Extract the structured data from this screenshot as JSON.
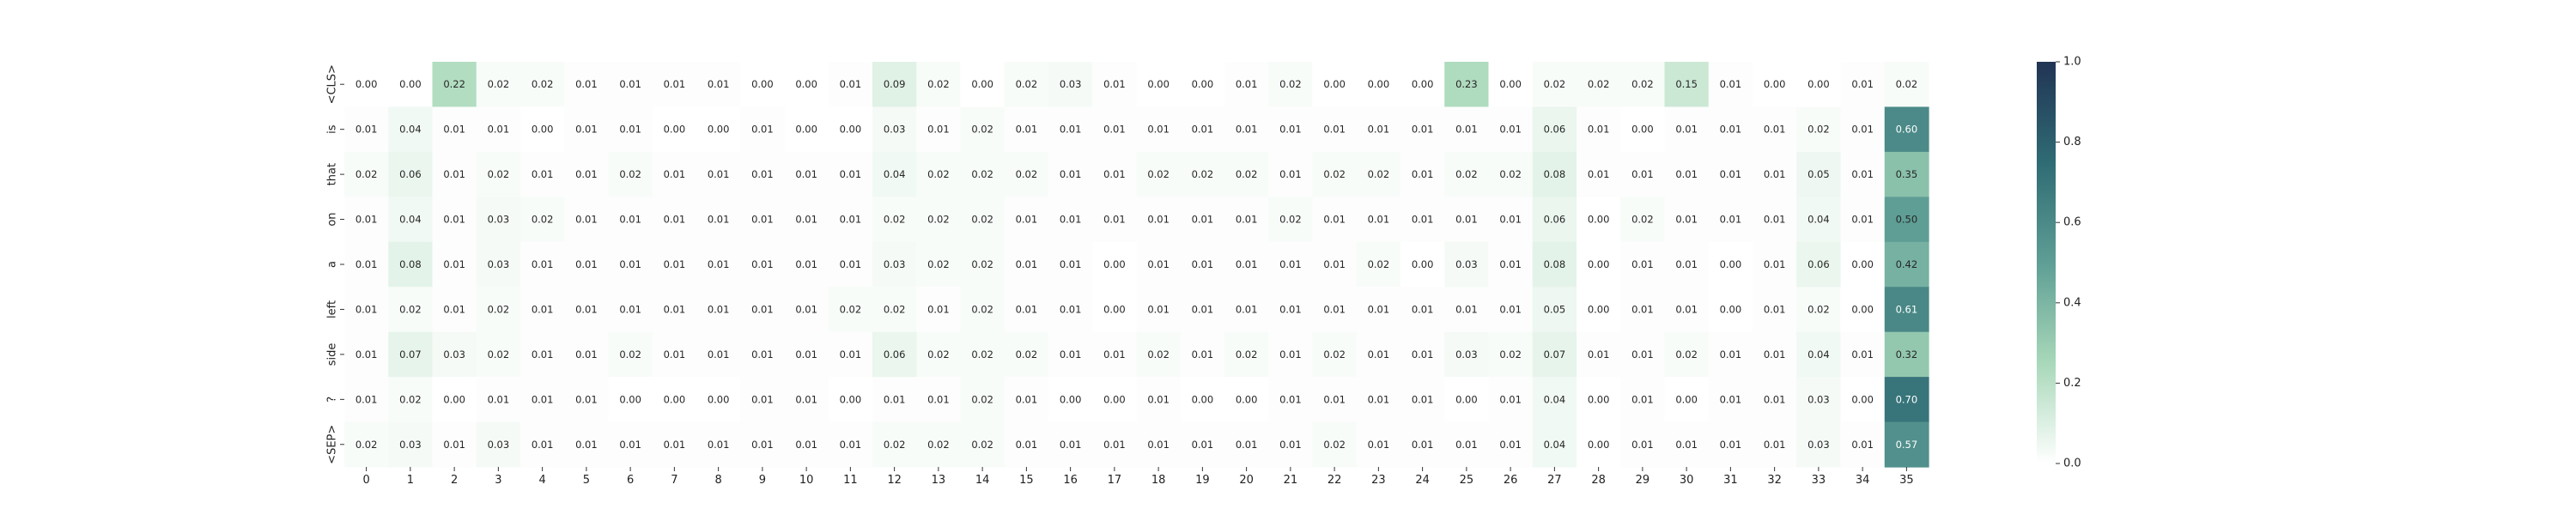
{
  "chart_data": {
    "type": "heatmap",
    "title": "",
    "xlabel": "",
    "ylabel": "",
    "x_labels": [
      "0",
      "1",
      "2",
      "3",
      "4",
      "5",
      "6",
      "7",
      "8",
      "9",
      "10",
      "11",
      "12",
      "13",
      "14",
      "15",
      "16",
      "17",
      "18",
      "19",
      "20",
      "21",
      "22",
      "23",
      "24",
      "25",
      "26",
      "27",
      "28",
      "29",
      "30",
      "31",
      "32",
      "33",
      "34",
      "35"
    ],
    "y_labels": [
      "<CLS>",
      "is",
      "that",
      "on",
      "a",
      "left",
      "side",
      "?",
      "<SEP>"
    ],
    "values": [
      [
        0.0,
        0.0,
        0.22,
        0.02,
        0.02,
        0.01,
        0.01,
        0.01,
        0.01,
        0.0,
        0.0,
        0.01,
        0.09,
        0.02,
        0.0,
        0.02,
        0.03,
        0.01,
        0.0,
        0.0,
        0.01,
        0.02,
        0.0,
        0.0,
        0.0,
        0.23,
        0.0,
        0.02,
        0.02,
        0.02,
        0.15,
        0.01,
        0.0,
        0.0,
        0.01,
        0.02
      ],
      [
        0.01,
        0.04,
        0.01,
        0.01,
        0.0,
        0.01,
        0.01,
        0.0,
        0.0,
        0.01,
        0.0,
        0.0,
        0.03,
        0.01,
        0.02,
        0.01,
        0.01,
        0.01,
        0.01,
        0.01,
        0.01,
        0.01,
        0.01,
        0.01,
        0.01,
        0.01,
        0.01,
        0.06,
        0.01,
        0.0,
        0.01,
        0.01,
        0.01,
        0.02,
        0.01,
        0.6
      ],
      [
        0.02,
        0.06,
        0.01,
        0.02,
        0.01,
        0.01,
        0.02,
        0.01,
        0.01,
        0.01,
        0.01,
        0.01,
        0.04,
        0.02,
        0.02,
        0.02,
        0.01,
        0.01,
        0.02,
        0.02,
        0.02,
        0.01,
        0.02,
        0.02,
        0.01,
        0.02,
        0.02,
        0.08,
        0.01,
        0.01,
        0.01,
        0.01,
        0.01,
        0.05,
        0.01,
        0.35
      ],
      [
        0.01,
        0.04,
        0.01,
        0.03,
        0.02,
        0.01,
        0.01,
        0.01,
        0.01,
        0.01,
        0.01,
        0.01,
        0.02,
        0.02,
        0.02,
        0.01,
        0.01,
        0.01,
        0.01,
        0.01,
        0.01,
        0.02,
        0.01,
        0.01,
        0.01,
        0.01,
        0.01,
        0.06,
        0.0,
        0.02,
        0.01,
        0.01,
        0.01,
        0.04,
        0.01,
        0.5
      ],
      [
        0.01,
        0.08,
        0.01,
        0.03,
        0.01,
        0.01,
        0.01,
        0.01,
        0.01,
        0.01,
        0.01,
        0.01,
        0.03,
        0.02,
        0.02,
        0.01,
        0.01,
        0.0,
        0.01,
        0.01,
        0.01,
        0.01,
        0.01,
        0.02,
        0.0,
        0.03,
        0.01,
        0.08,
        0.0,
        0.01,
        0.01,
        0.0,
        0.01,
        0.06,
        0.0,
        0.42
      ],
      [
        0.01,
        0.02,
        0.01,
        0.02,
        0.01,
        0.01,
        0.01,
        0.01,
        0.01,
        0.01,
        0.01,
        0.02,
        0.02,
        0.01,
        0.02,
        0.01,
        0.01,
        0.0,
        0.01,
        0.01,
        0.01,
        0.01,
        0.01,
        0.01,
        0.01,
        0.01,
        0.01,
        0.05,
        0.0,
        0.01,
        0.01,
        0.0,
        0.01,
        0.02,
        0.0,
        0.61
      ],
      [
        0.01,
        0.07,
        0.03,
        0.02,
        0.01,
        0.01,
        0.02,
        0.01,
        0.01,
        0.01,
        0.01,
        0.01,
        0.06,
        0.02,
        0.02,
        0.02,
        0.01,
        0.01,
        0.02,
        0.01,
        0.02,
        0.01,
        0.02,
        0.01,
        0.01,
        0.03,
        0.02,
        0.07,
        0.01,
        0.01,
        0.02,
        0.01,
        0.01,
        0.04,
        0.01,
        0.32
      ],
      [
        0.01,
        0.02,
        0.0,
        0.01,
        0.01,
        0.01,
        0.0,
        0.0,
        0.0,
        0.01,
        0.01,
        0.0,
        0.01,
        0.01,
        0.02,
        0.01,
        0.0,
        0.0,
        0.01,
        0.0,
        0.0,
        0.01,
        0.01,
        0.01,
        0.01,
        0.0,
        0.01,
        0.04,
        0.0,
        0.01,
        0.0,
        0.01,
        0.01,
        0.03,
        0.0,
        0.7
      ],
      [
        0.02,
        0.03,
        0.01,
        0.03,
        0.01,
        0.01,
        0.01,
        0.01,
        0.01,
        0.01,
        0.01,
        0.01,
        0.02,
        0.02,
        0.02,
        0.01,
        0.01,
        0.01,
        0.01,
        0.01,
        0.01,
        0.01,
        0.02,
        0.01,
        0.01,
        0.01,
        0.01,
        0.04,
        0.0,
        0.01,
        0.01,
        0.01,
        0.01,
        0.03,
        0.01,
        0.57
      ]
    ],
    "value_format": "2 decimals",
    "color_range": [
      0.0,
      1.0
    ],
    "colormap": [
      "#ffffff",
      "#a8d8b9",
      "#5e9e95",
      "#2f6b74",
      "#213454"
    ],
    "colorbar": {
      "placement": "right",
      "ticks": [
        "0.0",
        "0.2",
        "0.4",
        "0.6",
        "0.8",
        "1.0"
      ]
    },
    "grid": false,
    "legend": "none"
  }
}
